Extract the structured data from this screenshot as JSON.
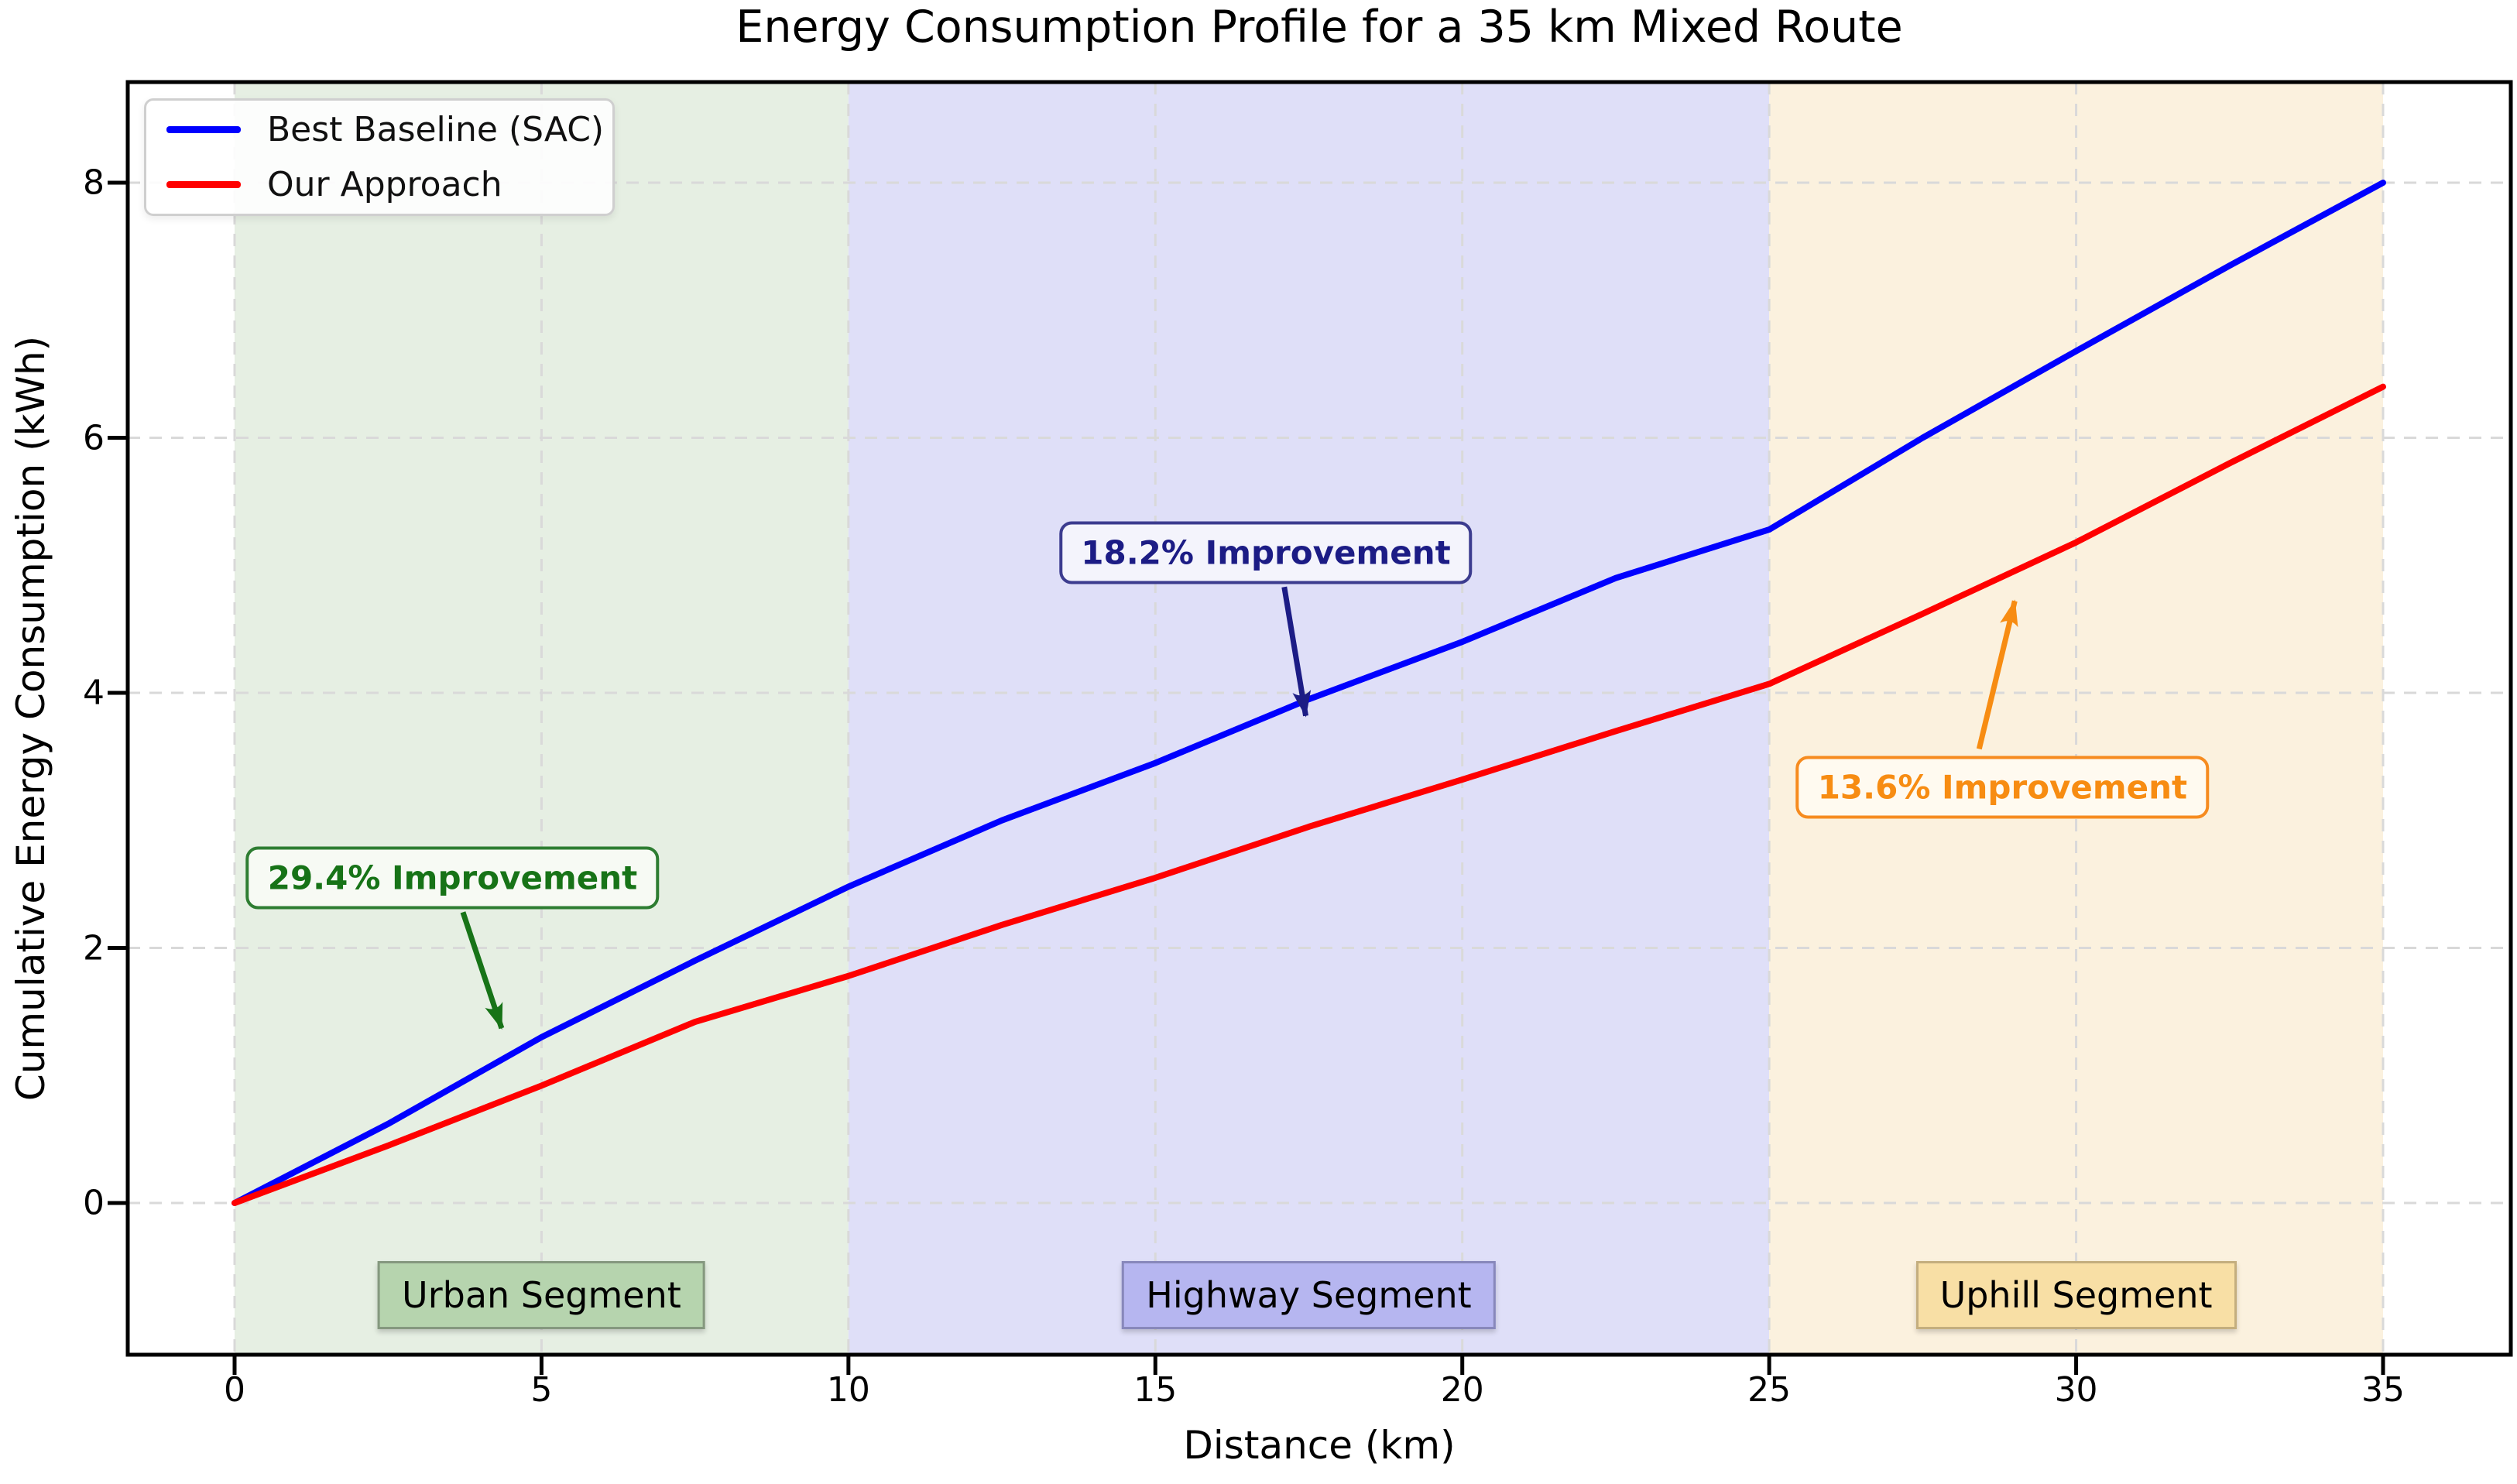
{
  "figure": {
    "background": "#ffffff"
  },
  "chart_data": {
    "type": "line",
    "title": "Energy Consumption Profile for a 35 km Mixed Route",
    "xlabel": "Distance (km)",
    "ylabel": "Cumulative Energy Consumption (kWh)",
    "xlim": [
      -1.75,
      37.1
    ],
    "ylim": [
      -1.2,
      8.8
    ],
    "x_ticks": [
      0,
      5,
      10,
      15,
      20,
      25,
      30,
      35
    ],
    "y_ticks": [
      0,
      2,
      4,
      6,
      8
    ],
    "grid": true,
    "legend_position": "upper left",
    "x": [
      0,
      2.5,
      5,
      7.5,
      10,
      12.5,
      15,
      17.5,
      20,
      22.5,
      25,
      27.5,
      30,
      32.5,
      35
    ],
    "series": [
      {
        "name": "Best Baseline (SAC)",
        "color": "#0000ff",
        "values": [
          0,
          0.62,
          1.3,
          1.9,
          2.48,
          3.0,
          3.45,
          3.95,
          4.4,
          4.9,
          5.28,
          6.0,
          6.68,
          7.35,
          8.0
        ]
      },
      {
        "name": "Our Approach",
        "color": "#ff0000",
        "values": [
          0,
          0.45,
          0.92,
          1.42,
          1.78,
          2.18,
          2.55,
          2.95,
          3.32,
          3.7,
          4.07,
          4.62,
          5.18,
          5.8,
          6.4
        ]
      }
    ],
    "segments": [
      {
        "label": "Urban Segment",
        "start_km": 0,
        "end_km": 10,
        "fill": "#e6efe3",
        "label_fill": "#b6d4ae",
        "label_border": "#85987f"
      },
      {
        "label": "Highway Segment",
        "start_km": 10,
        "end_km": 25,
        "fill": "#dfdff8",
        "label_fill": "#b6b6f0",
        "label_border": "#8888bb"
      },
      {
        "label": "Uphill Segment",
        "start_km": 25,
        "end_km": 35,
        "fill": "#fbf1de",
        "label_fill": "#f8dfa5",
        "label_border": "#c4ae7e"
      }
    ],
    "annotations": [
      {
        "text": "29.4% Improvement",
        "color": "#177317",
        "border": "#2e7d32",
        "bg": "#f7faf4",
        "box_km": 3.55,
        "box_kwh": 2.55,
        "arrow": {
          "x1": 3.72,
          "y1": 2.28,
          "x2": 4.35,
          "y2": 1.37
        }
      },
      {
        "text": "18.2% Improvement",
        "color": "#1c1c85",
        "border": "#3c3c8f",
        "bg": "#f4f4fc",
        "box_km": 16.8,
        "box_kwh": 5.1,
        "arrow": {
          "x1": 17.1,
          "y1": 4.83,
          "x2": 17.45,
          "y2": 3.82
        }
      },
      {
        "text": "13.6% Improvement",
        "color": "#f78c12",
        "border": "#f68b1f",
        "bg": "#fffaf0",
        "box_km": 28.8,
        "box_kwh": 3.26,
        "arrow": {
          "x1": 28.42,
          "y1": 3.56,
          "x2": 29.0,
          "y2": 4.72
        }
      }
    ]
  },
  "legend": {
    "items": [
      {
        "label": "Best Baseline (SAC)",
        "color": "#0000ff"
      },
      {
        "label": "Our Approach",
        "color": "#ff0000"
      }
    ]
  }
}
